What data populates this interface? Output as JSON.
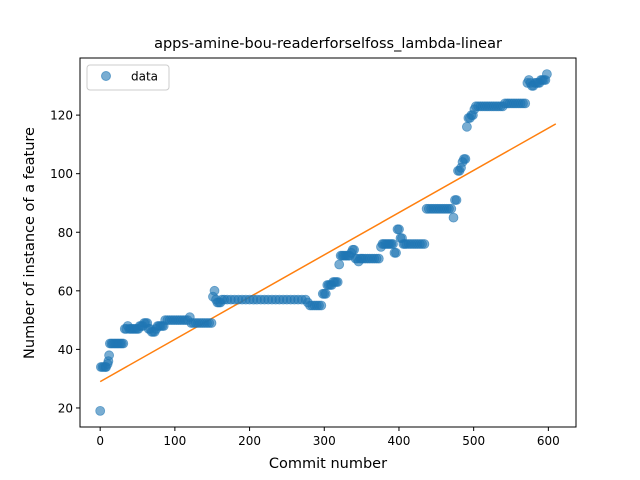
{
  "chart_data": {
    "type": "scatter",
    "title": "apps-amine-bou-readerforselfoss_lambda-linear",
    "xlabel": "Commit number",
    "ylabel": "Number of instance of a feature",
    "xlim": [
      -27,
      637
    ],
    "ylim": [
      13.5,
      139.5
    ],
    "xticks": [
      0,
      100,
      200,
      300,
      400,
      500,
      600
    ],
    "yticks": [
      20,
      40,
      60,
      80,
      100,
      120
    ],
    "legend": {
      "position": "top-left",
      "entries": [
        "data"
      ]
    },
    "colors": {
      "data": "#1f77b4",
      "fit": "#ff7f0e"
    },
    "series": [
      {
        "name": "data",
        "kind": "scatter",
        "points": [
          [
            0,
            19
          ],
          [
            1,
            34
          ],
          [
            3,
            34
          ],
          [
            5,
            34
          ],
          [
            7,
            34
          ],
          [
            8,
            34
          ],
          [
            10,
            35
          ],
          [
            11,
            36
          ],
          [
            12,
            38
          ],
          [
            13,
            42
          ],
          [
            15,
            42
          ],
          [
            17,
            42
          ],
          [
            19,
            42
          ],
          [
            21,
            42
          ],
          [
            23,
            42
          ],
          [
            25,
            42
          ],
          [
            27,
            42
          ],
          [
            29,
            42
          ],
          [
            31,
            42
          ],
          [
            33,
            47
          ],
          [
            35,
            47
          ],
          [
            37,
            48
          ],
          [
            39,
            47
          ],
          [
            41,
            47
          ],
          [
            43,
            47
          ],
          [
            45,
            47
          ],
          [
            47,
            47
          ],
          [
            49,
            47
          ],
          [
            51,
            47
          ],
          [
            53,
            48
          ],
          [
            55,
            48
          ],
          [
            57,
            48
          ],
          [
            59,
            49
          ],
          [
            61,
            49
          ],
          [
            63,
            49
          ],
          [
            65,
            47
          ],
          [
            67,
            47
          ],
          [
            69,
            46
          ],
          [
            71,
            46
          ],
          [
            73,
            46
          ],
          [
            75,
            47
          ],
          [
            77,
            48
          ],
          [
            79,
            48
          ],
          [
            81,
            48
          ],
          [
            83,
            48
          ],
          [
            85,
            48
          ],
          [
            87,
            50
          ],
          [
            90,
            50
          ],
          [
            93,
            50
          ],
          [
            96,
            50
          ],
          [
            99,
            50
          ],
          [
            102,
            50
          ],
          [
            105,
            50
          ],
          [
            108,
            50
          ],
          [
            111,
            50
          ],
          [
            114,
            50
          ],
          [
            117,
            50
          ],
          [
            120,
            51
          ],
          [
            122,
            49
          ],
          [
            125,
            49
          ],
          [
            128,
            49
          ],
          [
            131,
            49
          ],
          [
            134,
            49
          ],
          [
            137,
            49
          ],
          [
            140,
            49
          ],
          [
            143,
            49
          ],
          [
            146,
            49
          ],
          [
            149,
            49
          ],
          [
            151,
            58
          ],
          [
            153,
            60
          ],
          [
            155,
            57
          ],
          [
            157,
            56
          ],
          [
            159,
            56
          ],
          [
            161,
            56
          ],
          [
            163,
            57
          ],
          [
            166,
            57
          ],
          [
            170,
            57
          ],
          [
            175,
            57
          ],
          [
            180,
            57
          ],
          [
            185,
            57
          ],
          [
            190,
            57
          ],
          [
            195,
            57
          ],
          [
            200,
            57
          ],
          [
            205,
            57
          ],
          [
            210,
            57
          ],
          [
            215,
            57
          ],
          [
            220,
            57
          ],
          [
            225,
            57
          ],
          [
            230,
            57
          ],
          [
            235,
            57
          ],
          [
            240,
            57
          ],
          [
            245,
            57
          ],
          [
            250,
            57
          ],
          [
            255,
            57
          ],
          [
            260,
            57
          ],
          [
            265,
            57
          ],
          [
            270,
            57
          ],
          [
            275,
            57
          ],
          [
            278,
            56
          ],
          [
            281,
            55
          ],
          [
            284,
            55
          ],
          [
            287,
            55
          ],
          [
            290,
            55
          ],
          [
            293,
            55
          ],
          [
            296,
            55
          ],
          [
            298,
            59
          ],
          [
            300,
            59
          ],
          [
            302,
            59
          ],
          [
            304,
            62
          ],
          [
            306,
            62
          ],
          [
            308,
            62
          ],
          [
            310,
            62
          ],
          [
            312,
            63
          ],
          [
            314,
            63
          ],
          [
            316,
            63
          ],
          [
            318,
            63
          ],
          [
            320,
            69
          ],
          [
            322,
            72
          ],
          [
            324,
            72
          ],
          [
            326,
            72
          ],
          [
            328,
            72
          ],
          [
            330,
            72
          ],
          [
            332,
            72
          ],
          [
            334,
            72
          ],
          [
            336,
            73
          ],
          [
            338,
            74
          ],
          [
            340,
            74
          ],
          [
            342,
            71
          ],
          [
            344,
            71
          ],
          [
            346,
            70
          ],
          [
            348,
            71
          ],
          [
            350,
            71
          ],
          [
            352,
            71
          ],
          [
            355,
            71
          ],
          [
            358,
            71
          ],
          [
            361,
            71
          ],
          [
            364,
            71
          ],
          [
            367,
            71
          ],
          [
            370,
            71
          ],
          [
            373,
            71
          ],
          [
            376,
            75
          ],
          [
            378,
            76
          ],
          [
            380,
            76
          ],
          [
            382,
            76
          ],
          [
            384,
            76
          ],
          [
            386,
            76
          ],
          [
            388,
            76
          ],
          [
            390,
            76
          ],
          [
            392,
            76
          ],
          [
            394,
            73
          ],
          [
            396,
            73
          ],
          [
            398,
            81
          ],
          [
            400,
            81
          ],
          [
            402,
            78
          ],
          [
            404,
            78
          ],
          [
            406,
            76
          ],
          [
            408,
            76
          ],
          [
            410,
            76
          ],
          [
            413,
            76
          ],
          [
            416,
            76
          ],
          [
            419,
            76
          ],
          [
            422,
            76
          ],
          [
            425,
            76
          ],
          [
            428,
            76
          ],
          [
            431,
            76
          ],
          [
            434,
            76
          ],
          [
            437,
            88
          ],
          [
            440,
            88
          ],
          [
            443,
            88
          ],
          [
            446,
            88
          ],
          [
            449,
            88
          ],
          [
            452,
            88
          ],
          [
            455,
            88
          ],
          [
            458,
            88
          ],
          [
            461,
            88
          ],
          [
            464,
            88
          ],
          [
            467,
            88
          ],
          [
            470,
            88
          ],
          [
            473,
            85
          ],
          [
            475,
            91
          ],
          [
            477,
            91
          ],
          [
            479,
            101
          ],
          [
            481,
            101
          ],
          [
            483,
            102
          ],
          [
            485,
            104
          ],
          [
            487,
            105
          ],
          [
            489,
            105
          ],
          [
            491,
            116
          ],
          [
            493,
            119
          ],
          [
            495,
            119
          ],
          [
            497,
            120
          ],
          [
            499,
            120
          ],
          [
            501,
            122
          ],
          [
            503,
            123
          ],
          [
            506,
            123
          ],
          [
            509,
            123
          ],
          [
            512,
            123
          ],
          [
            515,
            123
          ],
          [
            518,
            123
          ],
          [
            521,
            123
          ],
          [
            524,
            123
          ],
          [
            527,
            123
          ],
          [
            530,
            123
          ],
          [
            533,
            123
          ],
          [
            536,
            123
          ],
          [
            539,
            123
          ],
          [
            542,
            124
          ],
          [
            545,
            124
          ],
          [
            548,
            124
          ],
          [
            551,
            124
          ],
          [
            554,
            124
          ],
          [
            557,
            124
          ],
          [
            560,
            124
          ],
          [
            563,
            124
          ],
          [
            566,
            124
          ],
          [
            569,
            124
          ],
          [
            572,
            131
          ],
          [
            574,
            132
          ],
          [
            576,
            131
          ],
          [
            578,
            130
          ],
          [
            580,
            130
          ],
          [
            582,
            131
          ],
          [
            584,
            131
          ],
          [
            586,
            131
          ],
          [
            588,
            131
          ],
          [
            590,
            132
          ],
          [
            592,
            132
          ],
          [
            594,
            132
          ],
          [
            596,
            132
          ],
          [
            598,
            134
          ]
        ]
      },
      {
        "name": "linear-fit",
        "kind": "line",
        "points": [
          [
            0,
            29
          ],
          [
            610,
            117
          ]
        ]
      }
    ]
  }
}
